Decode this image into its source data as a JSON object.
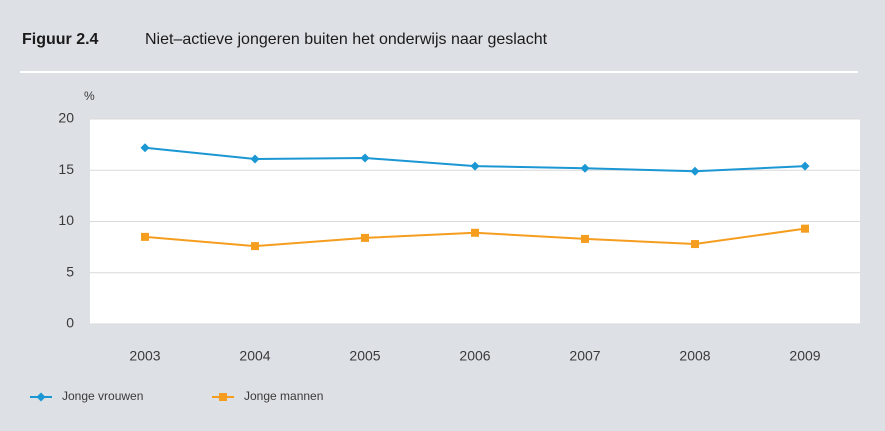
{
  "chart_data": {
    "type": "line",
    "figure_label": "Figuur 2.4",
    "title": "Niet–actieve jongeren buiten het onderwijs naar geslacht",
    "y_label": "%",
    "categories": [
      "2003",
      "2004",
      "2005",
      "2006",
      "2007",
      "2008",
      "2009"
    ],
    "series": [
      {
        "name": "Jonge vrouwen",
        "color": "#1b97d4",
        "marker": "diamond",
        "values": [
          17.2,
          16.1,
          16.2,
          15.4,
          15.2,
          14.9,
          15.4
        ]
      },
      {
        "name": "Jonge mannen",
        "color": "#f59d1f",
        "marker": "square",
        "values": [
          8.5,
          7.6,
          8.4,
          8.9,
          8.3,
          7.8,
          9.3
        ]
      }
    ],
    "ylim": [
      0,
      20
    ],
    "yticks": [
      0,
      5,
      10,
      15,
      20
    ],
    "grid": true,
    "legend": "bottom-left"
  }
}
